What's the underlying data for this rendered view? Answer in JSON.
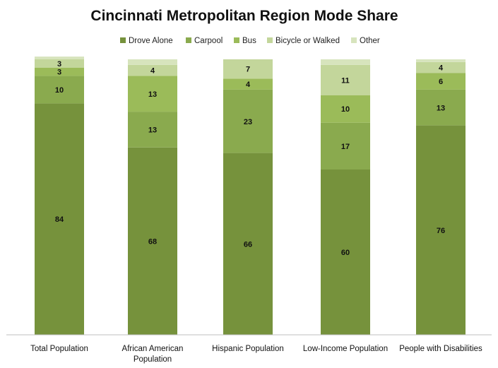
{
  "chart_data": {
    "type": "bar",
    "stacked": true,
    "title": "Cincinnati Metropolitan Region Mode Share",
    "xlabel": "",
    "ylabel": "",
    "ylim": [
      0,
      100
    ],
    "grid": false,
    "legend_position": "top",
    "categories": [
      [
        "Total Population"
      ],
      [
        "African American",
        "Population"
      ],
      [
        "Hispanic Population"
      ],
      [
        "Low-Income Population"
      ],
      [
        "People with Disabilities"
      ]
    ],
    "series": [
      {
        "name": "Drove Alone",
        "color": "#76923c",
        "values": [
          84,
          68,
          66,
          60,
          76
        ]
      },
      {
        "name": "Carpool",
        "color": "#8aaa4e",
        "values": [
          10,
          13,
          23,
          17,
          13
        ]
      },
      {
        "name": "Bus",
        "color": "#9bbb59",
        "values": [
          3,
          13,
          4,
          10,
          6
        ]
      },
      {
        "name": "Bicycle or Walked",
        "color": "#c3d69b",
        "values": [
          3,
          4,
          7,
          11,
          4
        ]
      },
      {
        "name": "Other",
        "color": "#d7e4bd",
        "values": [
          1,
          2,
          0,
          2,
          1
        ]
      }
    ],
    "show_data_labels_min": 3
  }
}
